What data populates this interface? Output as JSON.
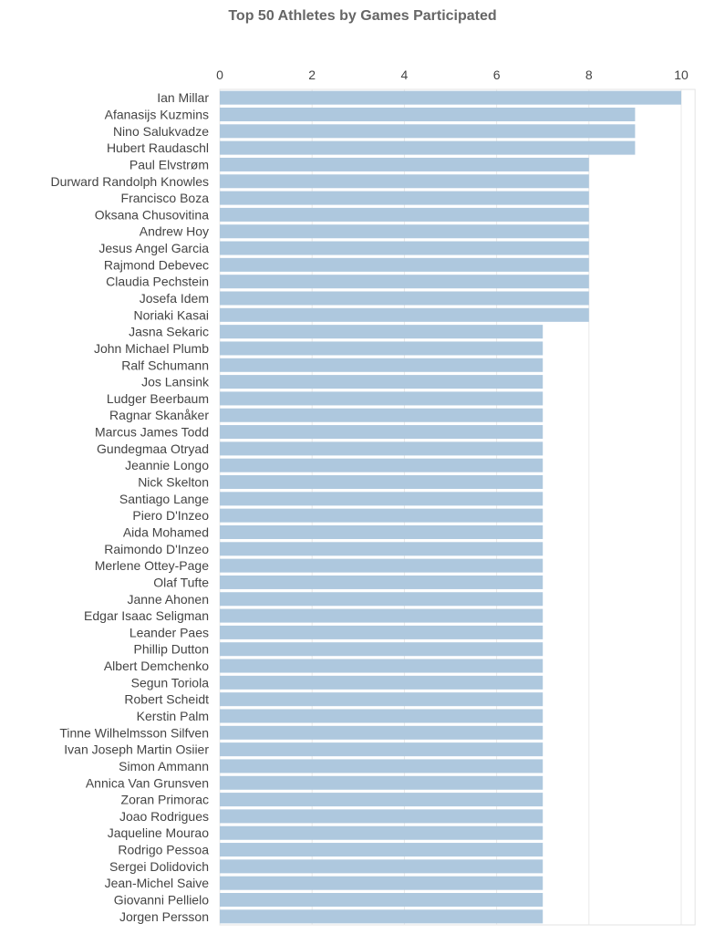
{
  "chart_data": {
    "type": "bar",
    "orientation": "horizontal",
    "title": "Top 50 Athletes by Games Participated",
    "xlabel": "",
    "ylabel": "",
    "xlim": [
      0,
      10.3
    ],
    "x_ticks": [
      "0",
      "2",
      "4",
      "6",
      "8",
      "10"
    ],
    "grid": true,
    "bar_color": "#aec8de",
    "categories": [
      "Ian Millar",
      "Afanasijs Kuzmins",
      "Nino Salukvadze",
      "Hubert Raudaschl",
      "Paul Elvstrøm",
      "Durward Randolph Knowles",
      "Francisco Boza",
      "Oksana Chusovitina",
      "Andrew Hoy",
      "Jesus Angel Garcia",
      "Rajmond Debevec",
      "Claudia Pechstein",
      "Josefa Idem",
      "Noriaki Kasai",
      "Jasna Sekaric",
      "John Michael Plumb",
      "Ralf Schumann",
      "Jos Lansink",
      "Ludger Beerbaum",
      "Ragnar Skanåker",
      "Marcus James Todd",
      "Gundegmaa Otryad",
      "Jeannie Longo",
      "Nick Skelton",
      "Santiago Lange",
      "Piero D'Inzeo",
      "Aida Mohamed",
      "Raimondo D'Inzeo",
      "Merlene Ottey-Page",
      "Olaf Tufte",
      "Janne Ahonen",
      "Edgar Isaac Seligman",
      "Leander Paes",
      "Phillip Dutton",
      "Albert Demchenko",
      "Segun Toriola",
      "Robert Scheidt",
      "Kerstin Palm",
      "Tinne Wilhelmsson Silfven",
      "Ivan Joseph Martin Osiier",
      "Simon Ammann",
      "Annica Van Grunsven",
      "Zoran Primorac",
      "Joao Rodrigues",
      "Jaqueline Mourao",
      "Rodrigo Pessoa",
      "Sergei Dolidovich",
      "Jean-Michel Saive",
      "Giovanni Pellielo",
      "Jorgen Persson"
    ],
    "values": [
      10,
      9,
      9,
      9,
      8,
      8,
      8,
      8,
      8,
      8,
      8,
      8,
      8,
      8,
      7,
      7,
      7,
      7,
      7,
      7,
      7,
      7,
      7,
      7,
      7,
      7,
      7,
      7,
      7,
      7,
      7,
      7,
      7,
      7,
      7,
      7,
      7,
      7,
      7,
      7,
      7,
      7,
      7,
      7,
      7,
      7,
      7,
      7,
      7,
      7
    ]
  }
}
